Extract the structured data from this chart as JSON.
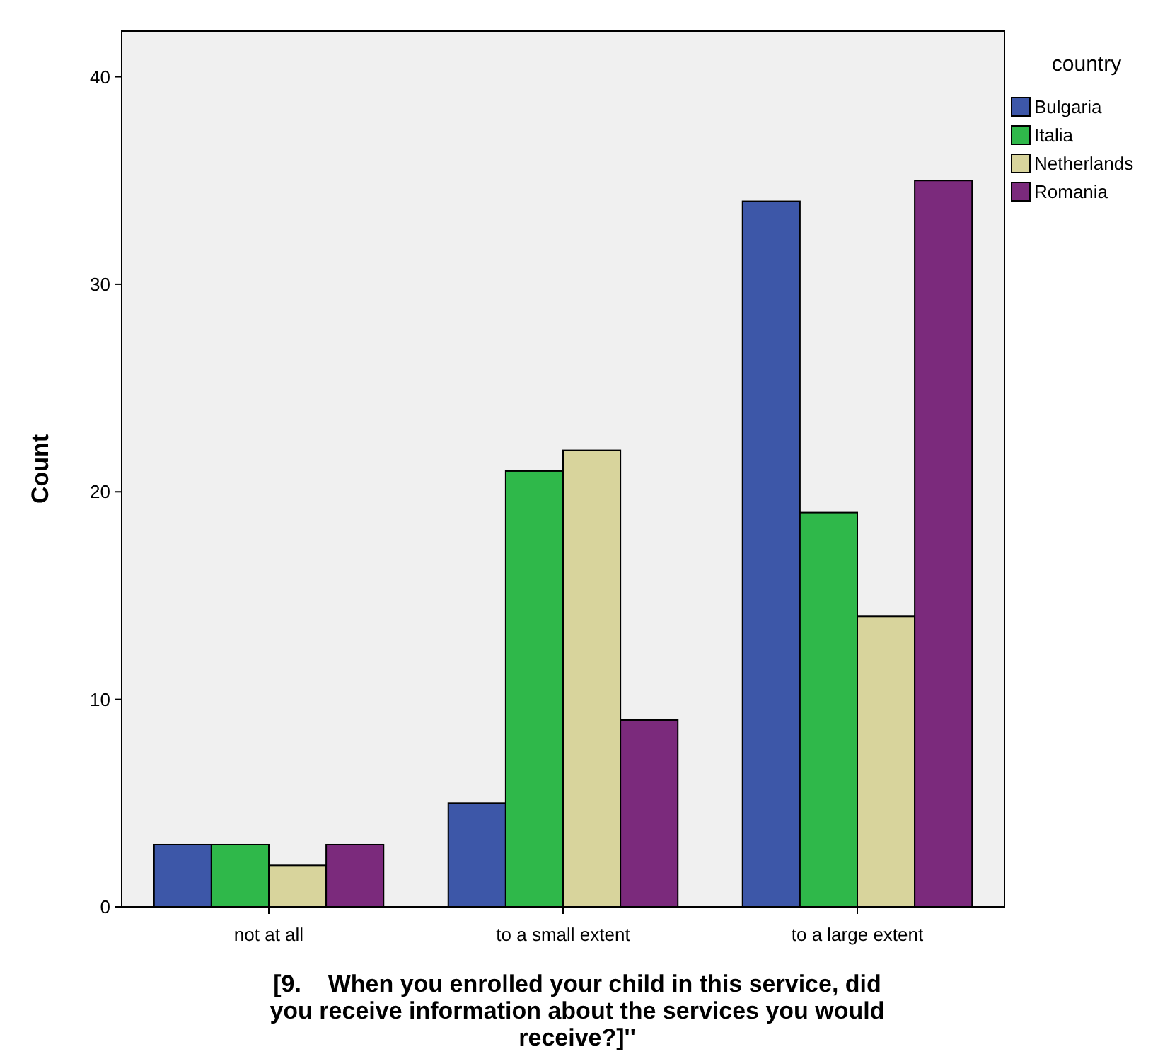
{
  "chart_data": {
    "type": "bar",
    "xlabel": "[9.    When you enrolled your child in this service, did you receive information about the services you would receive?]''",
    "ylabel": "Count",
    "legend_title": "country",
    "legend": "right",
    "grid": false,
    "categories": [
      "not at all",
      "to a small extent",
      "to a large extent"
    ],
    "series": [
      {
        "name": "Bulgaria",
        "color": "#3d57a8",
        "values": [
          3,
          5,
          34
        ]
      },
      {
        "name": "Italia",
        "color": "#2fb84a",
        "values": [
          3,
          21,
          19
        ]
      },
      {
        "name": "Netherlands",
        "color": "#d8d49c",
        "values": [
          2,
          22,
          14
        ]
      },
      {
        "name": "Romania",
        "color": "#7b2a7c",
        "values": [
          3,
          9,
          35
        ]
      }
    ],
    "ylim": [
      0,
      42.2
    ],
    "yticks": [
      0,
      10,
      20,
      30,
      40
    ]
  }
}
